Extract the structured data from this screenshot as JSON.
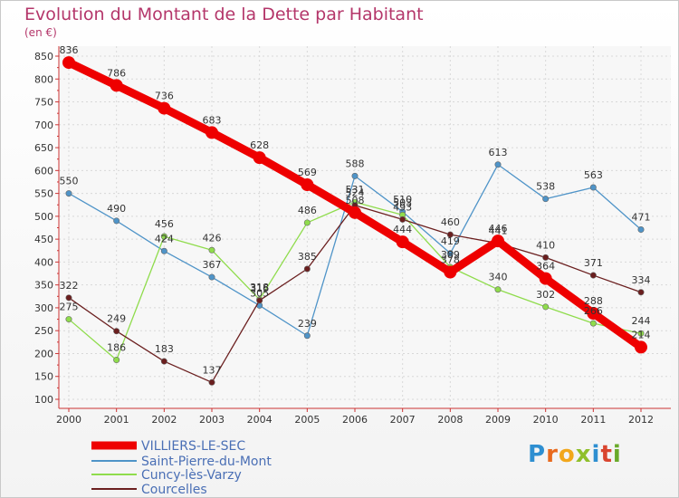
{
  "chart_data": {
    "type": "line",
    "title": "Evolution du Montant de la Dette par Habitant",
    "unit_label": "(en €)",
    "x": [
      "2000",
      "2001",
      "2002",
      "2003",
      "2004",
      "2005",
      "2006",
      "2007",
      "2008",
      "2009",
      "2010",
      "2011",
      "2012"
    ],
    "yticks": [
      100,
      150,
      200,
      250,
      300,
      350,
      400,
      450,
      500,
      550,
      600,
      650,
      700,
      750,
      800,
      850
    ],
    "ylim": [
      100,
      870
    ],
    "grid": true,
    "legend_position": "bottom-left",
    "series": [
      {
        "name": "VILLIERS-LE-SEC",
        "color": "#ee0000",
        "values": [
          836,
          786,
          736,
          683,
          628,
          569,
          508,
          444,
          378,
          446,
          364,
          288,
          214
        ],
        "labels": [
          "836",
          "786",
          "736",
          "683",
          "628",
          "569",
          "508",
          "444",
          "378",
          "446",
          "364",
          "288",
          "214"
        ]
      },
      {
        "name": "Saint-Pierre-du-Mont",
        "color": "#4f94c8",
        "values": [
          550,
          490,
          424,
          367,
          305,
          239,
          588,
          510,
          419,
          613,
          538,
          563,
          471
        ],
        "labels": [
          "550",
          "490",
          "424",
          "367",
          "305",
          "239",
          "588",
          "510",
          "419",
          "613",
          "538",
          "563",
          "471"
        ]
      },
      {
        "name": "Cuncy-lès-Varzy",
        "color": "#8fdc4c",
        "values": [
          275,
          186,
          456,
          426,
          318,
          486,
          531,
          503,
          389,
          340,
          302,
          266,
          244
        ],
        "labels": [
          "275",
          "186",
          "456",
          "426",
          "318",
          "486",
          "531",
          "503",
          "389",
          "340",
          "302",
          "266",
          "244"
        ]
      },
      {
        "name": "Courcelles",
        "color": "#6b1f1f",
        "values": [
          322,
          249,
          183,
          137,
          316,
          385,
          524,
          493,
          460,
          441,
          410,
          371,
          334
        ],
        "labels": [
          "322",
          "249",
          "183",
          "137",
          "316",
          "385",
          "524",
          "493",
          "460",
          "441",
          "410",
          "371",
          "334"
        ]
      }
    ]
  },
  "brand": {
    "letters": [
      "P",
      "r",
      "o",
      "x",
      "i",
      "t",
      "i"
    ]
  }
}
